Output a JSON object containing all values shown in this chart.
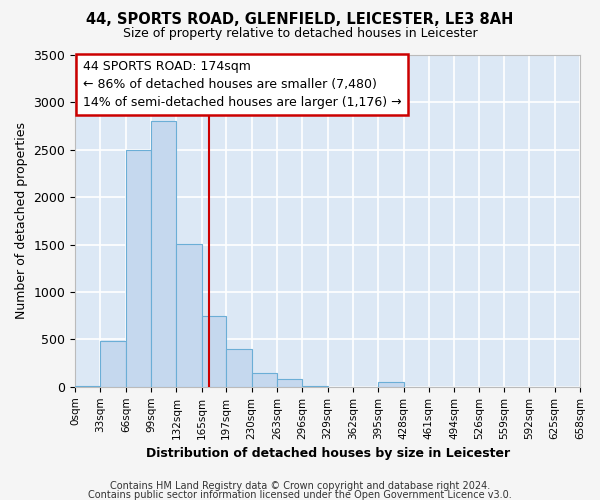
{
  "title": "44, SPORTS ROAD, GLENFIELD, LEICESTER, LE3 8AH",
  "subtitle": "Size of property relative to detached houses in Leicester",
  "xlabel": "Distribution of detached houses by size in Leicester",
  "ylabel": "Number of detached properties",
  "bar_color": "#c5d8ee",
  "bar_edge_color": "#6baed6",
  "bg_color": "#dce8f5",
  "plot_bg_color": "#dce8f5",
  "grid_color": "#ffffff",
  "vline_x": 174,
  "vline_color": "#cc0000",
  "annotation_line1": "44 SPORTS ROAD: 174sqm",
  "annotation_line2": "← 86% of detached houses are smaller (7,480)",
  "annotation_line3": "14% of semi-detached houses are larger (1,176) →",
  "annotation_box_color": "#cc0000",
  "footnote1": "Contains HM Land Registry data © Crown copyright and database right 2024.",
  "footnote2": "Contains public sector information licensed under the Open Government Licence v3.0.",
  "bin_edges": [
    0,
    33,
    66,
    99,
    132,
    165,
    197,
    230,
    263,
    296,
    329,
    362,
    395,
    428,
    461,
    494,
    526,
    559,
    592,
    625,
    658
  ],
  "bin_labels": [
    "0sqm",
    "33sqm",
    "66sqm",
    "99sqm",
    "132sqm",
    "165sqm",
    "197sqm",
    "230sqm",
    "263sqm",
    "296sqm",
    "329sqm",
    "362sqm",
    "395sqm",
    "428sqm",
    "461sqm",
    "494sqm",
    "526sqm",
    "559sqm",
    "592sqm",
    "625sqm",
    "658sqm"
  ],
  "bar_heights": [
    5,
    480,
    2500,
    2800,
    1510,
    750,
    395,
    150,
    80,
    10,
    0,
    0,
    55,
    0,
    0,
    0,
    0,
    0,
    0,
    0
  ],
  "ylim": [
    0,
    3500
  ],
  "yticks": [
    0,
    500,
    1000,
    1500,
    2000,
    2500,
    3000,
    3500
  ]
}
